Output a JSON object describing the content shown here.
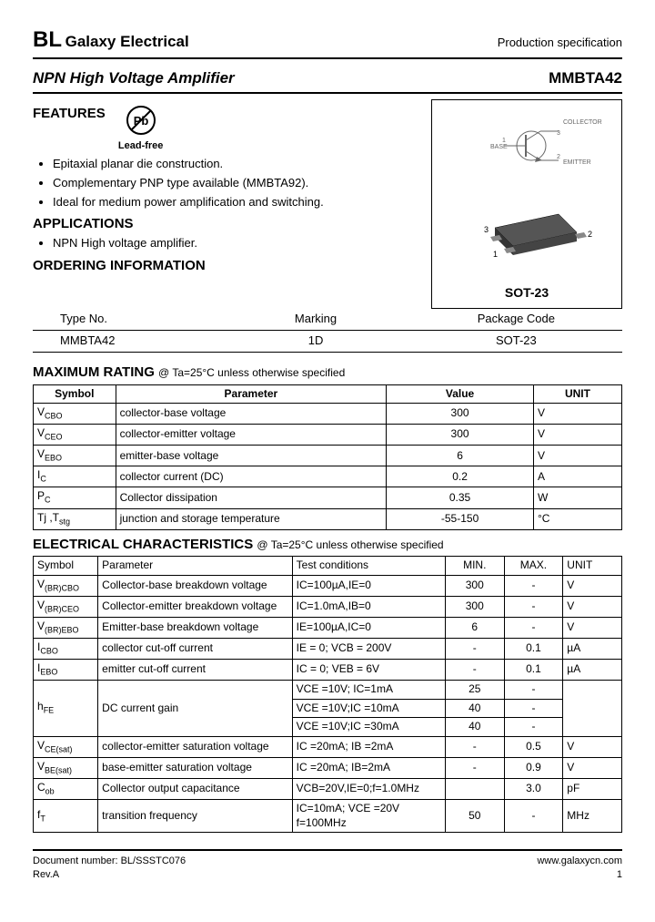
{
  "header": {
    "brand": "BL",
    "brand_sub": "Galaxy Electrical",
    "prod_spec": "Production specification"
  },
  "title": {
    "left": "NPN High Voltage Amplifier",
    "right": "MMBTA42"
  },
  "features": {
    "heading": "FEATURES",
    "items": [
      "Epitaxial planar die construction.",
      "Complementary PNP type available (MMBTA92).",
      "Ideal for medium power amplification and switching."
    ],
    "leadfree": "Lead-free"
  },
  "applications": {
    "heading": "APPLICATIONS",
    "items": [
      "NPN High voltage amplifier."
    ]
  },
  "package": {
    "label": "SOT-23",
    "pins": {
      "collector": "COLLECTOR",
      "base": "BASE",
      "emitter": "EMITTER"
    }
  },
  "ordering": {
    "heading": "ORDERING INFORMATION",
    "cols": [
      "Type No.",
      "Marking",
      "Package Code"
    ],
    "row": [
      "MMBTA42",
      "1D",
      "SOT-23"
    ]
  },
  "max_rating": {
    "heading": "MAXIMUM RATING",
    "note": "@ Ta=25°C unless otherwise specified",
    "cols": [
      "Symbol",
      "Parameter",
      "Value",
      "UNIT"
    ],
    "rows": [
      {
        "sym": "V",
        "sub": "CBO",
        "param": "collector-base voltage",
        "val": "300",
        "unit": "V"
      },
      {
        "sym": "V",
        "sub": "CEO",
        "param": "collector-emitter voltage",
        "val": "300",
        "unit": "V"
      },
      {
        "sym": "V",
        "sub": "EBO",
        "param": "emitter-base voltage",
        "val": "6",
        "unit": "V"
      },
      {
        "sym": "I",
        "sub": "C",
        "param": "collector current (DC)",
        "val": "0.2",
        "unit": "A"
      },
      {
        "sym": "P",
        "sub": "C",
        "param": "Collector dissipation",
        "val": "0.35",
        "unit": "W"
      },
      {
        "sym": "Tj ,T",
        "sub": "stg",
        "param": "junction and storage temperature",
        "val": "-55-150",
        "unit": "°C"
      }
    ]
  },
  "elec": {
    "heading": "ELECTRICAL CHARACTERISTICS",
    "note": "@ Ta=25°C unless otherwise specified",
    "cols": [
      "Symbol",
      "Parameter",
      "Test   conditions",
      "MIN.",
      "MAX.",
      "UNIT"
    ],
    "rows": [
      {
        "sym": "V",
        "sub": "(BR)CBO",
        "param": "Collector-base breakdown voltage",
        "tc": "IC=100µA,IE=0",
        "min": "300",
        "max": "-",
        "unit": "V"
      },
      {
        "sym": "V",
        "sub": "(BR)CEO",
        "param": "Collector-emitter breakdown voltage",
        "tc": "IC=1.0mA,IB=0",
        "min": "300",
        "max": "-",
        "unit": "V"
      },
      {
        "sym": "V",
        "sub": "(BR)EBO",
        "param": "Emitter-base breakdown voltage",
        "tc": "IE=100µA,IC=0",
        "min": "6",
        "max": "-",
        "unit": "V"
      },
      {
        "sym": "I",
        "sub": "CBO",
        "param": "collector cut-off current",
        "tc": "IE = 0; VCB = 200V",
        "min": "-",
        "max": "0.1",
        "unit": "µA"
      },
      {
        "sym": "I",
        "sub": "EBO",
        "param": "emitter cut-off current",
        "tc": "IC = 0; VEB = 6V",
        "min": "-",
        "max": "0.1",
        "unit": "µA"
      }
    ],
    "hfe": {
      "sym": "h",
      "sub": "FE",
      "param": "DC current gain",
      "lines": [
        {
          "tc": "VCE =10V; IC=1mA",
          "min": "25",
          "max": "-"
        },
        {
          "tc": "VCE =10V;IC =10mA",
          "min": "40",
          "max": "-"
        },
        {
          "tc": "VCE =10V;IC =30mA",
          "min": "40",
          "max": "-"
        }
      ]
    },
    "sat": [
      {
        "sym": "V",
        "sub": "CE(sat)",
        "param": "collector-emitter saturation voltage",
        "tc": "IC =20mA; IB =2mA",
        "min": "-",
        "max": "0.5",
        "unit": "V"
      },
      {
        "sym": "V",
        "sub": "BE(sat)",
        "param": "base-emitter saturation voltage",
        "tc": "IC =20mA; IB=2mA",
        "min": "-",
        "max": "0.9",
        "unit": "V"
      }
    ],
    "cob": {
      "sym": "C",
      "sub": "ob",
      "param": "Collector output capacitance",
      "tc": "VCB=20V,IE=0;f=1.0MHz",
      "min": "",
      "max": "3.0",
      "unit": "pF"
    },
    "ft": {
      "sym": "f",
      "sub": "T",
      "param": "transition frequency",
      "tc1": "IC=10mA; VCE =20V",
      "tc2": "f=100MHz",
      "min": "50",
      "max": "-",
      "unit": "MHz"
    }
  },
  "footer": {
    "doc": "Document number: BL/SSSTC076",
    "rev": "Rev.A",
    "url": "www.galaxycn.com",
    "page": "1"
  }
}
